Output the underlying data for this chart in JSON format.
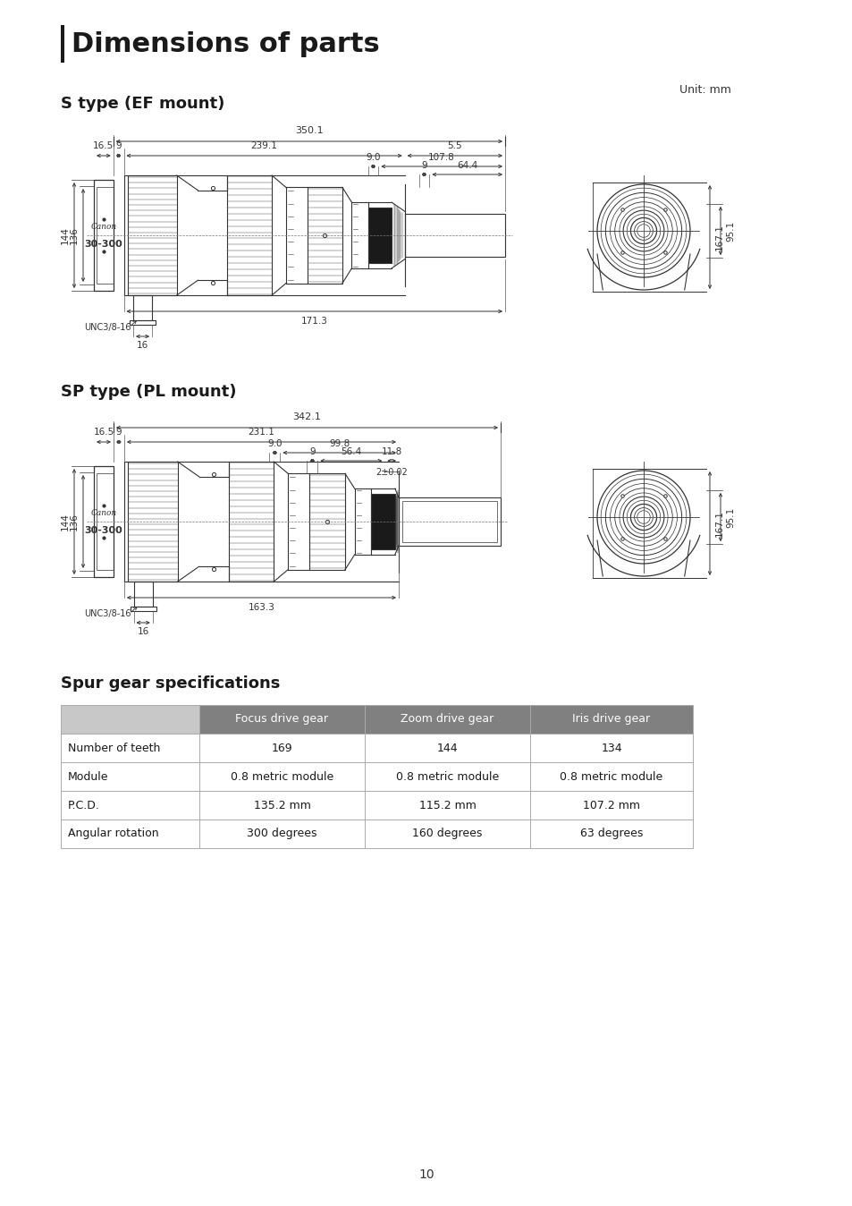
{
  "page_title": "Dimensions of parts",
  "unit_text": "Unit: mm",
  "section1_title": "S type (EF mount)",
  "section2_title": "SP type (PL mount)",
  "section3_title": "Spur gear specifications",
  "page_number": "10",
  "background_color": "#ffffff",
  "line_color": "#333333",
  "table_header_bg": "#808080",
  "table_header_fg": "#ffffff",
  "table_border_color": "#aaaaaa",
  "table_headers": [
    "",
    "Focus drive gear",
    "Zoom drive gear",
    "Iris drive gear"
  ],
  "table_rows": [
    [
      "Number of teeth",
      "169",
      "144",
      "134"
    ],
    [
      "Module",
      "0.8 metric module",
      "0.8 metric module",
      "0.8 metric module"
    ],
    [
      "P.C.D.",
      "135.2 mm",
      "115.2 mm",
      "107.2 mm"
    ],
    [
      "Angular rotation",
      "300 degrees",
      "160 degrees",
      "63 degrees"
    ]
  ]
}
